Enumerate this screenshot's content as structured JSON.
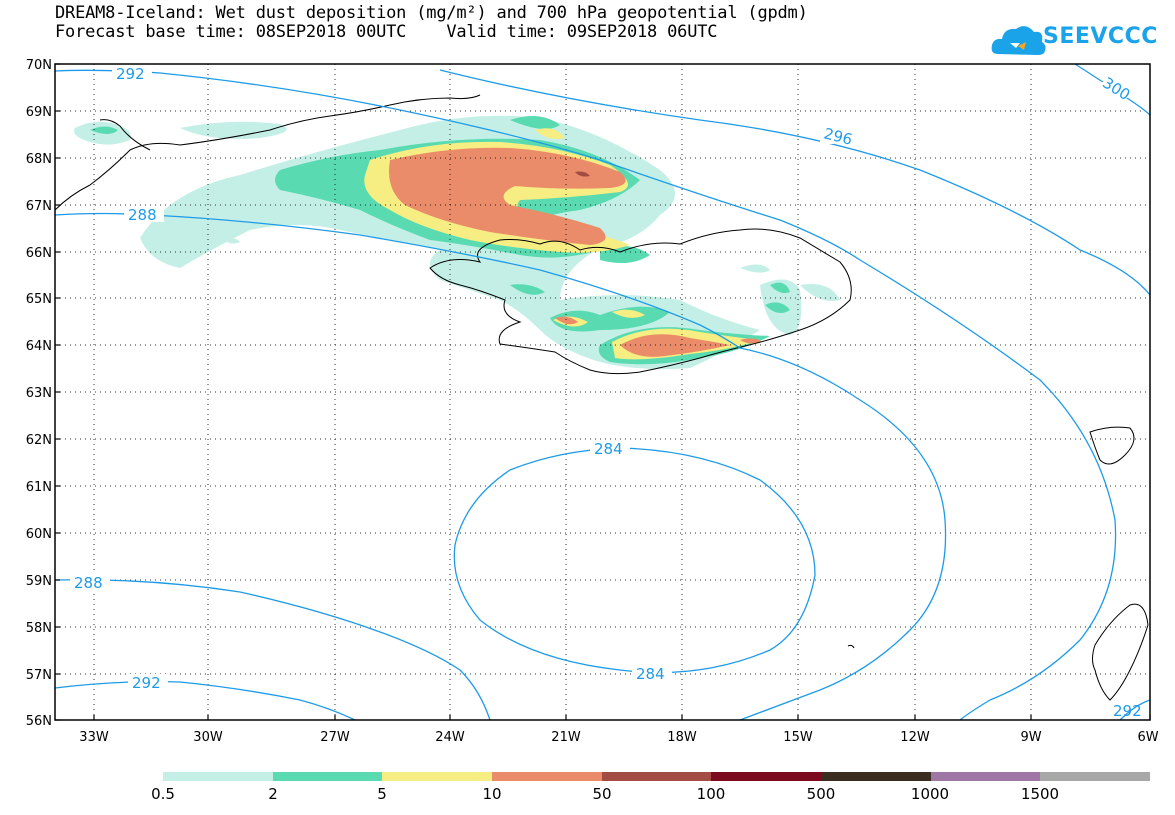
{
  "title": {
    "line1": "DREAM8-Iceland: Wet dust deposition (mg/m²) and 700 hPa geopotential (gpdm)",
    "line2": "Forecast base time: 08SEP2018 00UTC    Valid time: 09SEP2018 06UTC"
  },
  "logo": {
    "text": "SEEVCCC",
    "color": "#1aa3e8",
    "icon": "cloud-logo-icon"
  },
  "axes": {
    "lat_labels": [
      "70N",
      "69N",
      "68N",
      "67N",
      "66N",
      "65N",
      "64N",
      "63N",
      "62N",
      "61N",
      "60N",
      "59N",
      "58N",
      "57N",
      "56N"
    ],
    "lon_labels": [
      "33W",
      "30W",
      "27W",
      "24W",
      "21W",
      "18W",
      "15W",
      "12W",
      "9W",
      "6W"
    ]
  },
  "contours": {
    "color": "#1e9be8",
    "labels": [
      "292",
      "288",
      "296",
      "300",
      "284",
      "284",
      "288",
      "292",
      "292"
    ]
  },
  "legend": {
    "colors": [
      "#c4efe6",
      "#5adab1",
      "#f6ed83",
      "#ea8c69",
      "#a24c44",
      "#7c0a1f",
      "#3a2c1f",
      "#9e77a4",
      "#a7a7a7"
    ],
    "labels": [
      "0.5",
      "2",
      "5",
      "10",
      "50",
      "100",
      "500",
      "1000",
      "1500"
    ]
  }
}
